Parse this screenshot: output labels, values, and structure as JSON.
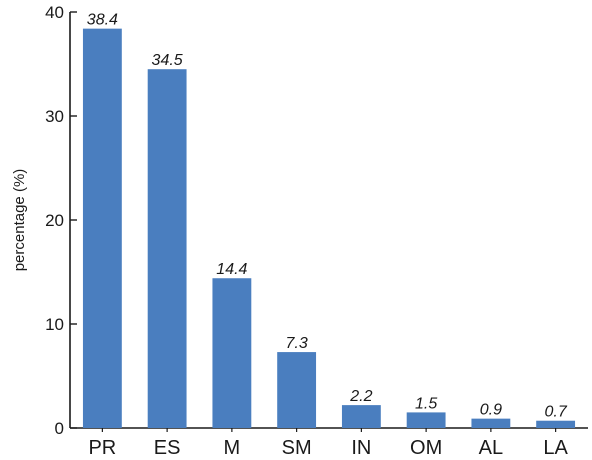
{
  "chart_data": {
    "type": "bar",
    "title": "",
    "xlabel": "",
    "ylabel": "percentage (%)",
    "categories": [
      "PR",
      "ES",
      "M",
      "SM",
      "IN",
      "OM",
      "AL",
      "LA"
    ],
    "values": [
      38.4,
      34.5,
      14.4,
      7.3,
      2.2,
      1.5,
      0.9,
      0.7
    ],
    "data_labels": [
      "38.4",
      "34.5",
      "14.4",
      "7.3",
      "2.2",
      "1.5",
      "0.9",
      "0.7"
    ],
    "ylim": [
      0,
      40
    ],
    "yticks": [
      0,
      10,
      20,
      30,
      40
    ],
    "ytick_labels": [
      "0",
      "10",
      "20",
      "30",
      "40"
    ],
    "grid": false,
    "legend": "none",
    "bar_color": "#4a7ebf"
  }
}
